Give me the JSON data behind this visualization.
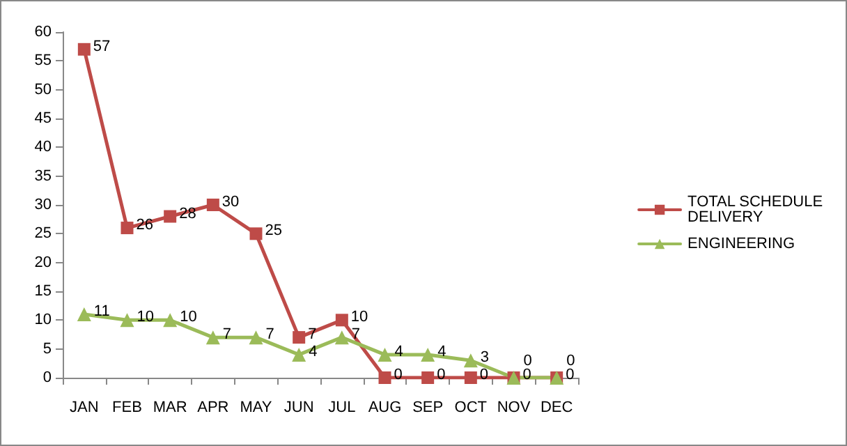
{
  "chart_data": {
    "type": "line",
    "categories": [
      "JAN",
      "FEB",
      "MAR",
      "APR",
      "MAY",
      "JUN",
      "JUL",
      "AUG",
      "SEP",
      "OCT",
      "NOV",
      "DEC"
    ],
    "series": [
      {
        "name": "TOTAL SCHEDULE DELIVERY",
        "color": "#be4b48",
        "marker": "square",
        "values": [
          57,
          26,
          28,
          30,
          25,
          7,
          10,
          0,
          0,
          0,
          0,
          0
        ]
      },
      {
        "name": "ENGINEERING",
        "color": "#9bbb59",
        "marker": "triangle",
        "values": [
          11,
          10,
          10,
          7,
          7,
          4,
          7,
          4,
          4,
          3,
          0,
          0
        ]
      }
    ],
    "ylim": [
      0,
      60
    ],
    "yticks": [
      0,
      5,
      10,
      15,
      20,
      25,
      30,
      35,
      40,
      45,
      50,
      55,
      60
    ],
    "grid": false,
    "legend": "right",
    "data_labels": true
  }
}
